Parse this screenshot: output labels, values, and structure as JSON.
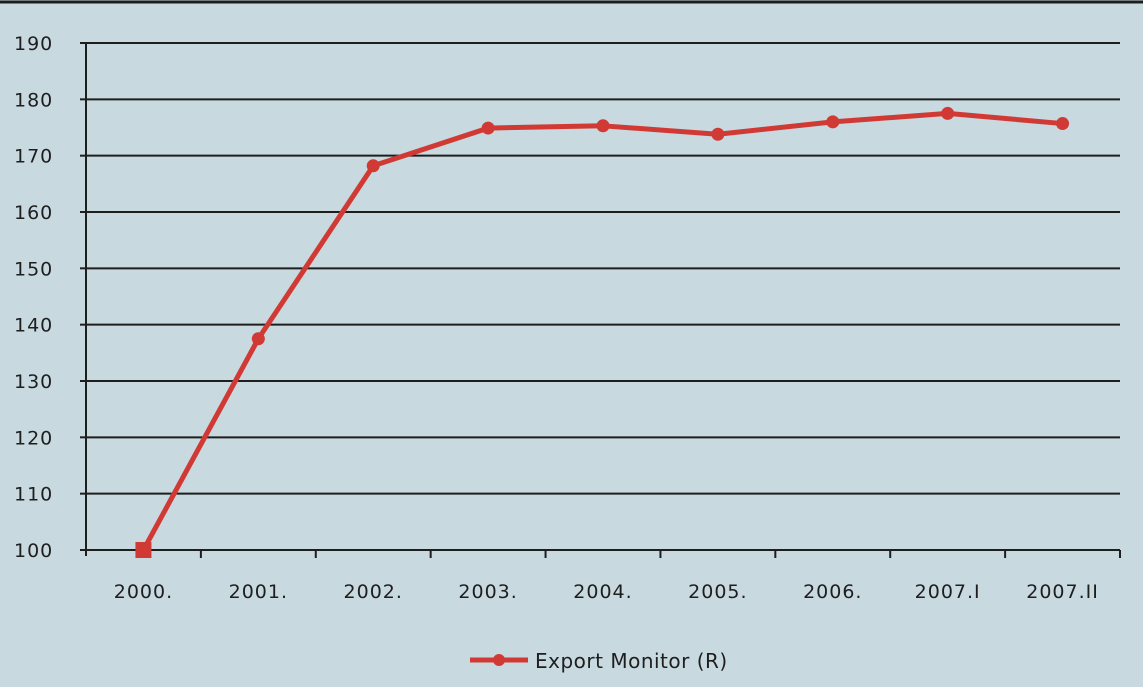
{
  "colors": {
    "background": "#c8d9e0",
    "series": "#d13a34",
    "axis": "#1e1e1e",
    "grid": "#1e1e1e"
  },
  "chart_data": {
    "type": "line",
    "title": "",
    "xlabel": "",
    "ylabel": "",
    "categories": [
      "2000.",
      "2001.",
      "2002.",
      "2003.",
      "2004.",
      "2005.",
      "2006.",
      "2007.I",
      "2007.II"
    ],
    "ylim": [
      100,
      190
    ],
    "yticks": [
      100,
      110,
      120,
      130,
      140,
      150,
      160,
      170,
      180,
      190
    ],
    "grid": true,
    "legend_position": "bottom-center",
    "series": [
      {
        "name": "Export Monitor (R)",
        "values": [
          100,
          137.5,
          168.2,
          174.9,
          175.3,
          173.8,
          176.0,
          177.5,
          175.7
        ],
        "first_marker": "square",
        "marker": "circle"
      }
    ]
  }
}
